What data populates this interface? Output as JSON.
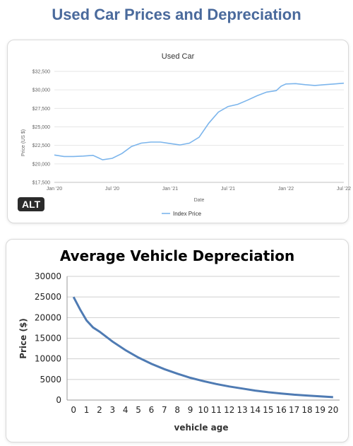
{
  "page": {
    "title": "Used Car Prices and Depreciation",
    "badge": "ALT"
  },
  "chart_data": [
    {
      "type": "line",
      "title": "Used Car",
      "xlabel": "Date",
      "ylabel": "Price (US $)",
      "y_ticks": [
        "$17,500",
        "$20,000",
        "$22,500",
        "$25,000",
        "$27,500",
        "$30,000",
        "$32,500"
      ],
      "ylim": [
        17500,
        32500
      ],
      "x_ticks": [
        "Jan '20",
        "Jul '20",
        "Jan '21",
        "Jul '21",
        "Jan '22",
        "Jul '22"
      ],
      "x_tick_months": [
        0,
        6,
        12,
        18,
        24,
        30
      ],
      "xlim_months": [
        0,
        30
      ],
      "legend_position": "bottom",
      "grid": "horizontal",
      "series": [
        {
          "name": "Index Price",
          "color": "#7cb5ec",
          "x_months": [
            0,
            1,
            2,
            3,
            4,
            4.5,
            5,
            6,
            7,
            8,
            9,
            10,
            11,
            12,
            13,
            14,
            15,
            16,
            17,
            18,
            19,
            20,
            21,
            22,
            23,
            23.5,
            24,
            25,
            26,
            27,
            28,
            29,
            30
          ],
          "values": [
            21200,
            21000,
            21000,
            21050,
            21150,
            20850,
            20550,
            20750,
            21400,
            22350,
            22800,
            22950,
            22950,
            22750,
            22550,
            22800,
            23600,
            25500,
            27000,
            27750,
            28050,
            28600,
            29200,
            29700,
            29900,
            30500,
            30800,
            30850,
            30700,
            30600,
            30700,
            30800,
            30900
          ]
        }
      ]
    },
    {
      "type": "line",
      "title": "Average Vehicle Depreciation",
      "xlabel": "vehicle age",
      "ylabel": "Price ($)",
      "ylim": [
        0,
        30000
      ],
      "y_ticks": [
        0,
        5000,
        10000,
        15000,
        20000,
        25000,
        30000
      ],
      "categories": [
        "0",
        "1",
        "2",
        "3",
        "4",
        "5",
        "6",
        "7",
        "8",
        "9",
        "10",
        "11",
        "12",
        "13",
        "14",
        "15",
        "16",
        "17",
        "18",
        "19",
        "20"
      ],
      "grid": "horizontal",
      "series": [
        {
          "color": "#4f7bb3",
          "x": [
            0,
            0.5,
            1,
            1.5,
            2,
            3,
            4,
            5,
            6,
            7,
            8,
            9,
            10,
            11,
            12,
            13,
            14,
            15,
            16,
            17,
            18,
            19,
            20
          ],
          "values": [
            25000,
            22000,
            19300,
            17600,
            16600,
            14200,
            12100,
            10300,
            8800,
            7500,
            6400,
            5400,
            4600,
            3900,
            3300,
            2800,
            2300,
            1900,
            1600,
            1300,
            1100,
            900,
            700
          ]
        }
      ]
    }
  ]
}
